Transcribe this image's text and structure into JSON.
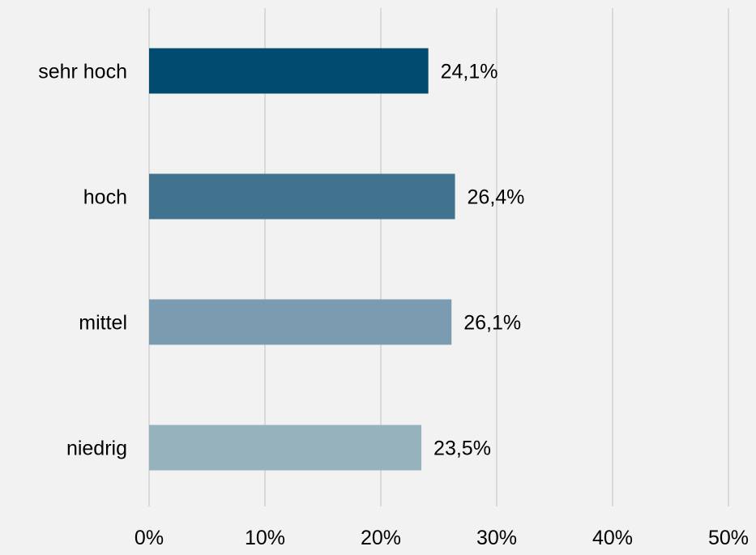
{
  "chart_data": {
    "type": "bar",
    "orientation": "horizontal",
    "categories": [
      "sehr hoch",
      "hoch",
      "mittel",
      "niedrig"
    ],
    "values": [
      24.1,
      26.4,
      26.1,
      23.5
    ],
    "value_labels": [
      "24,1%",
      "26,4%",
      "26,1%",
      "23,5%"
    ],
    "bar_colors": [
      "#004b6f",
      "#41738f",
      "#7a9bb0",
      "#96b2bd"
    ],
    "xlim": [
      0,
      50
    ],
    "x_ticks": [
      0,
      10,
      20,
      30,
      40,
      50
    ],
    "x_tick_labels": [
      "0%",
      "10%",
      "20%",
      "30%",
      "40%",
      "50%"
    ],
    "grid": true,
    "legend": "none",
    "title": "",
    "xlabel": "",
    "ylabel": ""
  }
}
